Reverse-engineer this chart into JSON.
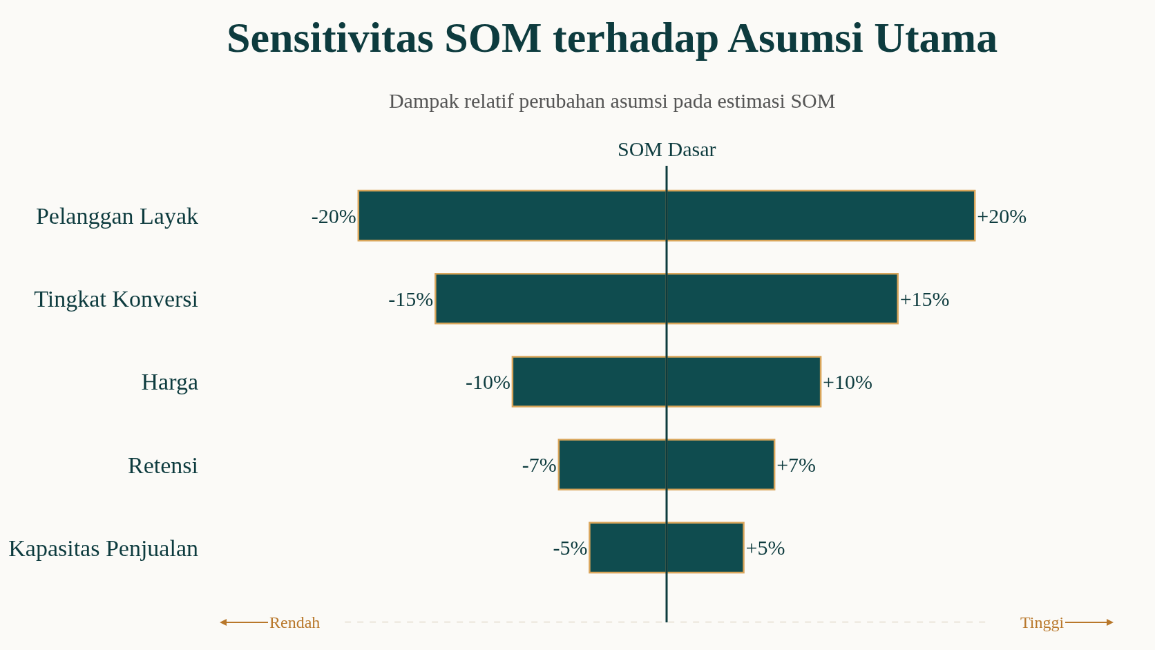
{
  "chart_data": {
    "type": "bar",
    "orientation": "horizontal",
    "title": "Sensitivitas SOM terhadap Asumsi Utama",
    "subtitle": "Dampak relatif perubahan asumsi pada estimasi SOM",
    "categories": [
      "Pelanggan Layak",
      "Tingkat Konversi",
      "Harga",
      "Retensi",
      "Kapasitas Penjualan"
    ],
    "series": [
      {
        "color": "#0f4c4f",
        "values": [
          -20,
          -15,
          -10,
          -7,
          -5
        ],
        "value_labels": [
          "-20%",
          "-15%",
          "-10%",
          "-7%",
          "-5%"
        ]
      },
      {
        "color": "#0f4c4f",
        "values": [
          20,
          15,
          10,
          7,
          5
        ],
        "value_labels": [
          "+20%",
          "+15%",
          "+10%",
          "+7%",
          "+5%"
        ]
      }
    ],
    "ref_lines": [
      {
        "axis": "x",
        "value": 0,
        "label": "SOM Dasar",
        "color": "#0d3b3e"
      }
    ],
    "annotations": [
      "Rendah",
      "Tinggi"
    ],
    "stacked": true,
    "tick_labels": "y",
    "grid": false
  }
}
